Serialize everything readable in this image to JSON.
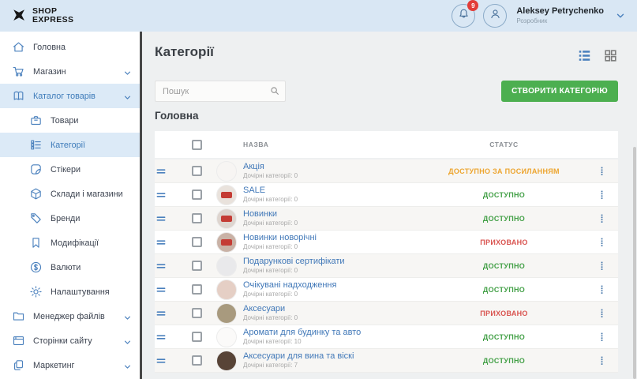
{
  "header": {
    "logo": {
      "line1": "SHOP",
      "line2": "EXPRESS"
    },
    "notifications_badge": "9",
    "user": {
      "name": "Aleksey Petrychenko",
      "role": "Розробник"
    }
  },
  "sidebar": {
    "items": [
      {
        "label": "Головна",
        "icon": "home-icon"
      },
      {
        "label": "Магазин",
        "icon": "cart-icon",
        "caret": true
      },
      {
        "label": "Каталог товарів",
        "icon": "catalog-icon",
        "caret": true,
        "highlighted": true
      },
      {
        "label": "Товари",
        "icon": "products-icon",
        "child": true
      },
      {
        "label": "Категорії",
        "icon": "categories-icon",
        "child": true,
        "active": true
      },
      {
        "label": "Стікери",
        "icon": "stickers-icon",
        "child": true
      },
      {
        "label": "Склади і магазини",
        "icon": "warehouse-icon",
        "child": true
      },
      {
        "label": "Бренди",
        "icon": "brands-icon",
        "child": true
      },
      {
        "label": "Модифікації",
        "icon": "modifications-icon",
        "child": true
      },
      {
        "label": "Валюти",
        "icon": "currency-icon",
        "child": true
      },
      {
        "label": "Налаштування",
        "icon": "settings-icon",
        "child": true
      },
      {
        "label": "Менеджер файлів",
        "icon": "files-icon",
        "caret": true
      },
      {
        "label": "Сторінки сайту",
        "icon": "pages-icon",
        "caret": true
      },
      {
        "label": "Маркетинг",
        "icon": "marketing-icon",
        "caret": true
      }
    ]
  },
  "main": {
    "page_title": "Категорії",
    "search_placeholder": "Пошук",
    "create_button": "СТВОРИТИ КАТЕГОРІЮ",
    "create_button_color": "#4caf50",
    "section_title": "Головна",
    "table": {
      "columns": {
        "name": "НАЗВА",
        "status": "СТАТУС"
      },
      "status_colors": {
        "available": "#43a047",
        "hidden": "#d9534f",
        "by_link": "#eda52f"
      },
      "badge_color": "#c43c35",
      "rows": [
        {
          "name": "Акція",
          "sublabel": "Дочірні категорії: 0",
          "status": "ДОСТУПНО ЗА ПОСИЛАННЯМ",
          "status_type": "by_link",
          "thumb_color": "#f7f5f3",
          "badge": false
        },
        {
          "name": "SALE",
          "sublabel": "Дочірні категорії: 0",
          "status": "ДОСТУПНО",
          "status_type": "available",
          "thumb_color": "#e9e2dc",
          "badge": true
        },
        {
          "name": "Новинки",
          "sublabel": "Дочірні категорії: 0",
          "status": "ДОСТУПНО",
          "status_type": "available",
          "thumb_color": "#ded5cf",
          "badge": true
        },
        {
          "name": "Новинки новорічні",
          "sublabel": "Дочірні категорії: 0",
          "status": "ПРИХОВАНО",
          "status_type": "hidden",
          "thumb_color": "#c9b2a6",
          "badge": true
        },
        {
          "name": "Подарункові сертифікати",
          "sublabel": "Дочірні категорії: 0",
          "status": "ДОСТУПНО",
          "status_type": "available",
          "thumb_color": "#e9e9eb",
          "badge": false
        },
        {
          "name": "Очікувані надходження",
          "sublabel": "Дочірні категорії: 0",
          "status": "ДОСТУПНО",
          "status_type": "available",
          "thumb_color": "#e5cfc5",
          "badge": false
        },
        {
          "name": "Аксесуари",
          "sublabel": "Дочірні категорії: 0",
          "status": "ПРИХОВАНО",
          "status_type": "hidden",
          "thumb_color": "#a89a7e",
          "badge": false
        },
        {
          "name": "Аромати для будинку та авто",
          "sublabel": "Дочірні категорії: 10",
          "status": "ДОСТУПНО",
          "status_type": "available",
          "thumb_color": "#fbfaf9",
          "badge": false
        },
        {
          "name": "Аксесуари для вина та віскі",
          "sublabel": "Дочірні категорії: 7",
          "status": "ДОСТУПНО",
          "status_type": "available",
          "thumb_color": "#584437",
          "badge": false
        }
      ]
    }
  }
}
